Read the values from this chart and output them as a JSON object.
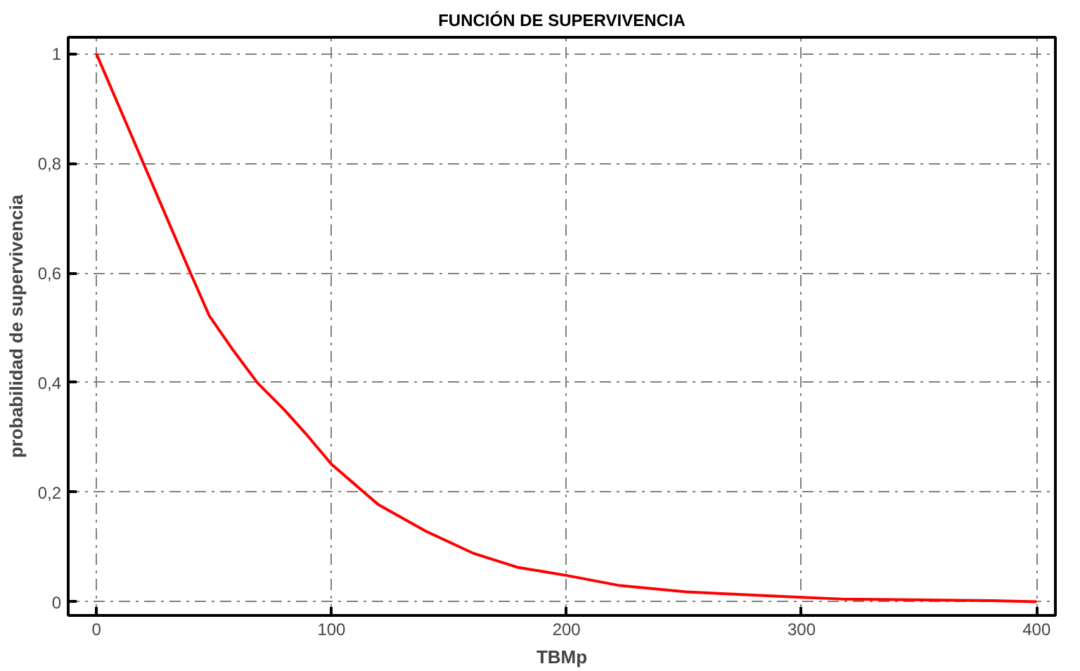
{
  "chart_data": {
    "type": "line",
    "title": "FUNCIÓN DE SUPERVIVENCIA",
    "xlabel": "TBMp",
    "ylabel": "probabilidad de supervivencia",
    "x": [
      0,
      10,
      20,
      30,
      40,
      48,
      58,
      68.6,
      80,
      89,
      100,
      120,
      140,
      160.6,
      179,
      200,
      222,
      251,
      300,
      317,
      381,
      400
    ],
    "series": [
      {
        "color": "#ff0000",
        "values": [
          1,
          0.9,
          0.8,
          0.7,
          0.6,
          0.522,
          0.46,
          0.399,
          0.35,
          0.307,
          0.251,
          0.177,
          0.129,
          0.088,
          0.063,
          0.048,
          0.03,
          0.018,
          0.008,
          0.005,
          0.002,
          0
        ]
      }
    ],
    "xlim": [
      -12,
      408
    ],
    "ylim": [
      -0.025,
      1.03
    ],
    "xticks": [
      0,
      100,
      200,
      300,
      400
    ],
    "yticks": [
      {
        "value": 0,
        "label": "0"
      },
      {
        "value": 0.2,
        "label": "0,2"
      },
      {
        "value": 0.4,
        "label": "0,4"
      },
      {
        "value": 0.6,
        "label": "0,6"
      },
      {
        "value": 0.8,
        "label": "0,8"
      },
      {
        "value": 1,
        "label": "1"
      }
    ],
    "grid": true,
    "marker": "none",
    "line_style": "solid"
  }
}
